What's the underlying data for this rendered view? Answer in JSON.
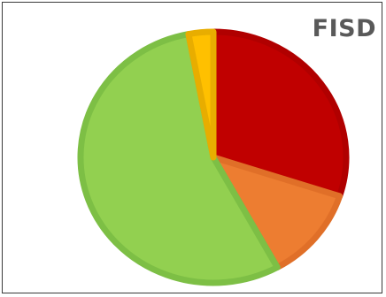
{
  "chart_data": {
    "type": "pie",
    "title": "FISD",
    "slices": [
      {
        "value": 30,
        "color": "#c00000",
        "edge": "#b00000"
      },
      {
        "value": 12,
        "color": "#ed7d31",
        "edge": "#e06f28"
      },
      {
        "value": 55,
        "color": "#92d050",
        "edge": "#7dbf45"
      },
      {
        "value": 3,
        "color": "#ffc000",
        "edge": "#e8ad00"
      }
    ],
    "start_angle_deg": 0,
    "direction": "clockwise",
    "legend": "none"
  }
}
